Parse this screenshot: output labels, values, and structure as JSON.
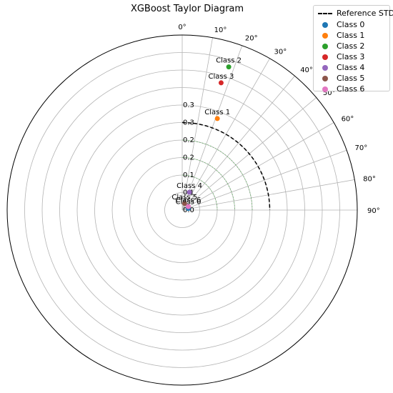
{
  "chart_data": {
    "type": "scatter",
    "projection": "polar (quarter)",
    "title": "XGBoost Taylor Diagram",
    "radial_range": [
      0.0,
      0.5
    ],
    "radial_ticks": [
      "0.0",
      "0.1",
      "0.1",
      "0.2",
      "0.2",
      "0.3",
      "0.3"
    ],
    "radial_tick_values": [
      0.0,
      0.05,
      0.1,
      0.15,
      0.2,
      0.25,
      0.3
    ],
    "angle_ticks": [
      "0°",
      "10°",
      "20°",
      "30°",
      "40°",
      "50°",
      "60°",
      "70°",
      "80°",
      "90°"
    ],
    "angle_tick_values": [
      0,
      10,
      20,
      30,
      40,
      50,
      60,
      70,
      80,
      90
    ],
    "reference": {
      "name": "Reference STD",
      "std": 0.25,
      "color": "#000000",
      "style": "dashed"
    },
    "series": [
      {
        "name": "Class 0",
        "color": "#1f77b4",
        "std": 0.018,
        "angle_deg": 75
      },
      {
        "name": "Class 1",
        "color": "#ff7f0e",
        "std": 0.28,
        "angle_deg": 21
      },
      {
        "name": "Class 2",
        "color": "#2ca02c",
        "std": 0.43,
        "angle_deg": 18
      },
      {
        "name": "Class 3",
        "color": "#d62728",
        "std": 0.38,
        "angle_deg": 17
      },
      {
        "name": "Class 4",
        "color": "#9467bd",
        "std": 0.055,
        "angle_deg": 22
      },
      {
        "name": "Class 5",
        "color": "#8c564b",
        "std": 0.02,
        "angle_deg": 20
      },
      {
        "name": "Class 6",
        "color": "#e377c2",
        "std": 0.02,
        "angle_deg": 60
      }
    ],
    "grid": true,
    "legend_position": "top-right"
  }
}
